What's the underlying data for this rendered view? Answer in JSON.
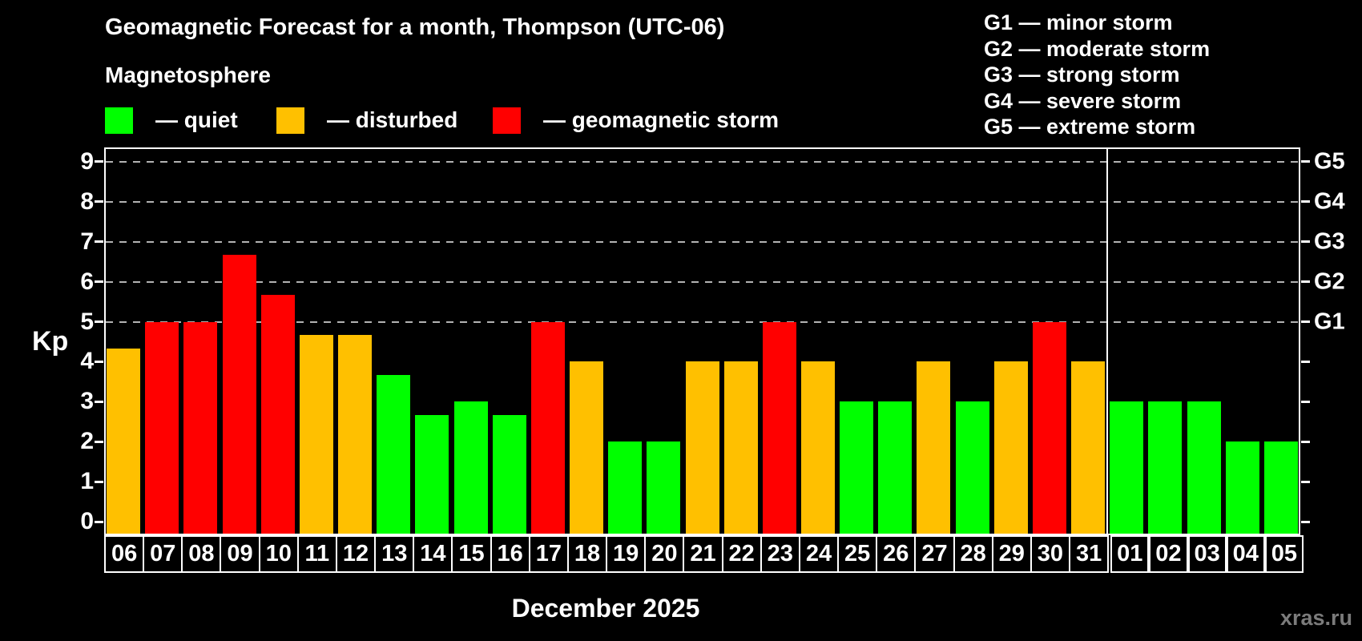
{
  "header": {
    "title": "Geomagnetic Forecast for a month, Thompson (UTC-06)",
    "subtitle": "Magnetosphere"
  },
  "colors": {
    "quiet": "#00ff00",
    "disturbed": "#ffc000",
    "storm": "#ff0000",
    "grid": "#b3b3b3",
    "axis": "#ffffff",
    "watermark": "#7b7b7b"
  },
  "legend": {
    "items": [
      {
        "label": "— quiet",
        "status": "quiet"
      },
      {
        "label": "— disturbed",
        "status": "disturbed"
      },
      {
        "label": "— geomagnetic storm",
        "status": "storm"
      }
    ]
  },
  "g_scale": {
    "lines": [
      "G1 — minor storm",
      "G2 — moderate storm",
      "G3 — strong storm",
      "G4 — severe storm",
      "G5 — extreme storm"
    ]
  },
  "axis": {
    "ylabel": "Kp",
    "xlabel": "December 2025"
  },
  "watermark": "xras.ru",
  "chart_data": {
    "type": "bar",
    "title": "Geomagnetic Forecast for a month, Thompson (UTC-06)",
    "subtitle": "Magnetosphere",
    "ylabel": "Kp",
    "xlabel": "December 2025",
    "ylim": [
      0,
      9
    ],
    "y_ticks": [
      0,
      1,
      2,
      3,
      4,
      5,
      6,
      7,
      8,
      9
    ],
    "gridlines_at": [
      5,
      6,
      7,
      8,
      9
    ],
    "right_axis": [
      {
        "label": "G1",
        "kp": 5
      },
      {
        "label": "G2",
        "kp": 6
      },
      {
        "label": "G3",
        "kp": 7
      },
      {
        "label": "G4",
        "kp": 8
      },
      {
        "label": "G5",
        "kp": 9
      }
    ],
    "categories": [
      "06",
      "07",
      "08",
      "09",
      "10",
      "11",
      "12",
      "13",
      "14",
      "15",
      "16",
      "17",
      "18",
      "19",
      "20",
      "21",
      "22",
      "23",
      "24",
      "25",
      "26",
      "27",
      "28",
      "29",
      "30",
      "31",
      "01",
      "02",
      "03",
      "04",
      "05"
    ],
    "values": [
      4.33,
      5,
      5,
      6.67,
      5.67,
      4.67,
      4.67,
      3.67,
      2.67,
      3,
      2.67,
      5,
      4,
      2,
      2,
      4,
      4,
      5,
      4,
      3,
      3,
      4,
      3,
      4,
      5,
      4,
      3,
      3,
      3,
      2,
      2
    ],
    "statuses": [
      "disturbed",
      "storm",
      "storm",
      "storm",
      "storm",
      "disturbed",
      "disturbed",
      "quiet",
      "quiet",
      "quiet",
      "quiet",
      "storm",
      "disturbed",
      "quiet",
      "quiet",
      "disturbed",
      "disturbed",
      "storm",
      "disturbed",
      "quiet",
      "quiet",
      "disturbed",
      "quiet",
      "disturbed",
      "storm",
      "disturbed",
      "quiet",
      "quiet",
      "quiet",
      "quiet",
      "quiet"
    ],
    "month_separator_before_index": 26,
    "legend_position": "top",
    "grid": "horizontal dashed lines at Kp 5-9"
  }
}
